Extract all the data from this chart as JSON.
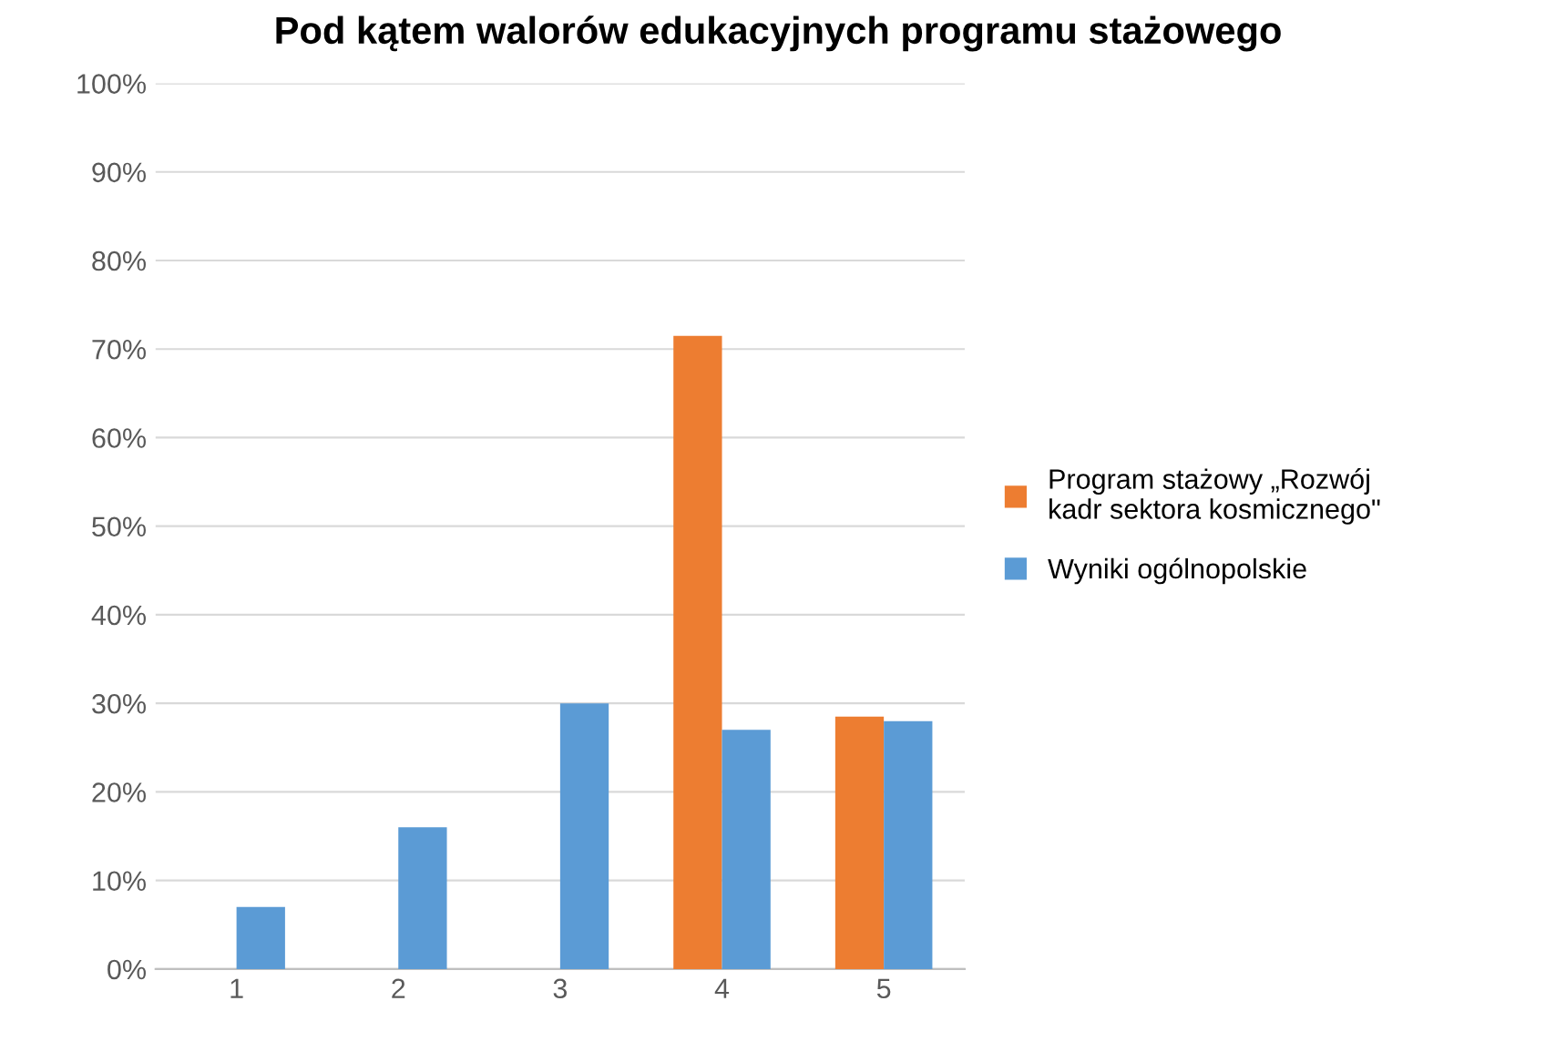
{
  "chart_data": {
    "type": "bar",
    "title": "Pod kątem walorów edukacyjnych programu stażowego",
    "categories": [
      "1",
      "2",
      "3",
      "4",
      "5"
    ],
    "series": [
      {
        "name": "Program stażowy „Rozwój kadr sektora kosmicznego\"",
        "color": "#ed7d31",
        "values": [
          0,
          0,
          0,
          71.5,
          28.5
        ]
      },
      {
        "name": "Wyniki ogólnopolskie",
        "color": "#5b9bd5",
        "values": [
          7,
          16,
          30,
          27,
          28
        ]
      }
    ],
    "ylim": [
      0,
      100
    ],
    "yticks": [
      {
        "value": 0,
        "label": "0%"
      },
      {
        "value": 10,
        "label": "10%"
      },
      {
        "value": 20,
        "label": "20%"
      },
      {
        "value": 30,
        "label": "30%"
      },
      {
        "value": 40,
        "label": "40%"
      },
      {
        "value": 50,
        "label": "50%"
      },
      {
        "value": 60,
        "label": "60%"
      },
      {
        "value": 70,
        "label": "70%"
      },
      {
        "value": 80,
        "label": "80%"
      },
      {
        "value": 90,
        "label": "90%"
      },
      {
        "value": 100,
        "label": "100%"
      }
    ],
    "grid": "y",
    "legend": "right"
  }
}
